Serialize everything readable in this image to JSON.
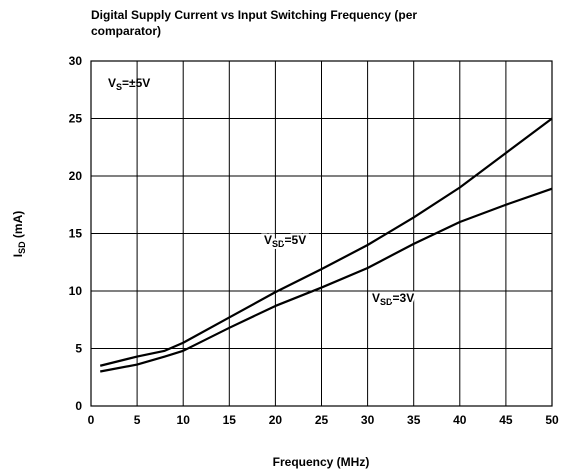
{
  "chart_data": {
    "type": "line",
    "title": [
      "Digital Supply Current vs Input Switching Frequency (per",
      "comparator)"
    ],
    "xlabel": "Frequency (MHz)",
    "ylabel": {
      "base": "I",
      "sub": "SD",
      "rest": " (mA)"
    },
    "xlim": [
      0,
      50
    ],
    "xticks": [
      0,
      5,
      10,
      15,
      20,
      25,
      30,
      35,
      40,
      45,
      50
    ],
    "ylim": [
      0,
      30
    ],
    "yticks": [
      0,
      5,
      10,
      15,
      20,
      25,
      30
    ],
    "grid": true,
    "annotations": [
      {
        "base": "V",
        "sub": "S",
        "rest": "=±5V"
      }
    ],
    "series": [
      {
        "label": {
          "base": "V",
          "sub": "SD",
          "rest": "=5V"
        },
        "color": "#000000",
        "x": [
          1,
          5,
          8,
          10,
          15,
          20,
          25,
          30,
          35,
          40,
          45,
          50
        ],
        "values": [
          3.5,
          4.3,
          4.8,
          5.5,
          7.7,
          9.9,
          11.9,
          14.0,
          16.4,
          19.0,
          22.0,
          25.0
        ]
      },
      {
        "label": {
          "base": "V",
          "sub": "SD",
          "rest": "=3V"
        },
        "color": "#000000",
        "x": [
          1,
          5,
          8,
          10,
          15,
          20,
          25,
          30,
          35,
          40,
          45,
          50
        ],
        "values": [
          3.0,
          3.6,
          4.3,
          4.8,
          6.8,
          8.7,
          10.3,
          12.0,
          14.1,
          16.0,
          17.5,
          18.9
        ]
      }
    ]
  }
}
